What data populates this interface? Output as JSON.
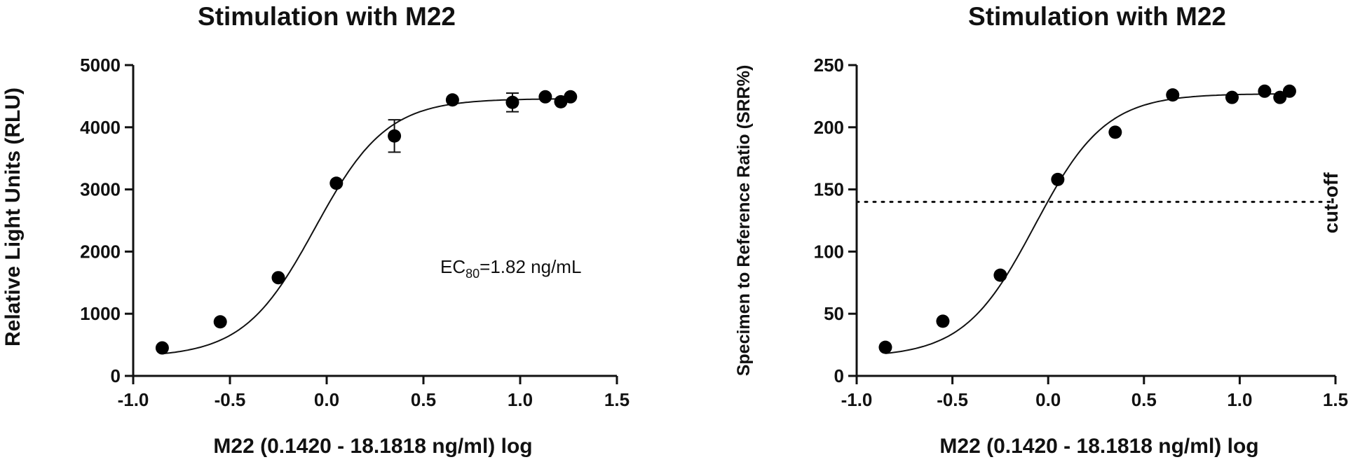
{
  "chart_data": [
    {
      "type": "scatter",
      "title": "Stimulation with M22",
      "xlabel": "M22 (0.1420 - 18.1818 ng/ml) log",
      "ylabel": "Relative Light Units (RLU)",
      "xlim": [
        -1.0,
        1.5
      ],
      "ylim": [
        0,
        5000
      ],
      "xticks": [
        -1.0,
        -0.5,
        0.0,
        0.5,
        1.0,
        1.5
      ],
      "yticks": [
        0,
        1000,
        2000,
        3000,
        4000,
        5000
      ],
      "xtick_labels": [
        "-1.0",
        "-0.5",
        "0.0",
        "0.5",
        "1.0",
        "1.5"
      ],
      "ytick_labels": [
        "0",
        "1000",
        "2000",
        "3000",
        "4000",
        "5000"
      ],
      "grid": false,
      "series": [
        {
          "x": [
            -0.85,
            -0.55,
            -0.25,
            0.05,
            0.35,
            0.65,
            0.96,
            1.13,
            1.21,
            1.26
          ],
          "y": [
            450,
            870,
            1580,
            3100,
            3860,
            4440,
            4400,
            4490,
            4410,
            4490
          ],
          "error": [
            0,
            0,
            0,
            0,
            260,
            0,
            150,
            0,
            0,
            0
          ]
        }
      ],
      "fit": {
        "bottom": 300,
        "top": 4460,
        "logEC50": -0.06,
        "hill": 2.35
      },
      "annotation": {
        "prefix": "EC",
        "subscript": "80",
        "suffix": "=1.82 ng/mL"
      }
    },
    {
      "type": "scatter",
      "title": "Stimulation with M22",
      "xlabel": "M22 (0.1420 - 18.1818 ng/ml) log",
      "ylabel": "Specimen to Reference Ratio (SRR%)",
      "xlim": [
        -1.0,
        1.5
      ],
      "ylim": [
        0,
        250
      ],
      "xticks": [
        -1.0,
        -0.5,
        0.0,
        0.5,
        1.0,
        1.5
      ],
      "yticks": [
        0,
        50,
        100,
        150,
        200,
        250
      ],
      "xtick_labels": [
        "-1.0",
        "-0.5",
        "0.0",
        "0.5",
        "1.0",
        "1.5"
      ],
      "ytick_labels": [
        "0",
        "50",
        "100",
        "150",
        "200",
        "250"
      ],
      "grid": false,
      "series": [
        {
          "x": [
            -0.85,
            -0.55,
            -0.25,
            0.05,
            0.35,
            0.65,
            0.96,
            1.13,
            1.21,
            1.26
          ],
          "y": [
            23,
            44,
            81,
            158,
            196,
            226,
            224,
            229,
            224,
            229
          ]
        }
      ],
      "fit": {
        "bottom": 15,
        "top": 227,
        "logEC50": -0.07,
        "hill": 2.35
      },
      "reference_line": {
        "y": 140,
        "style": "dotted",
        "label": "cut-off"
      }
    }
  ]
}
